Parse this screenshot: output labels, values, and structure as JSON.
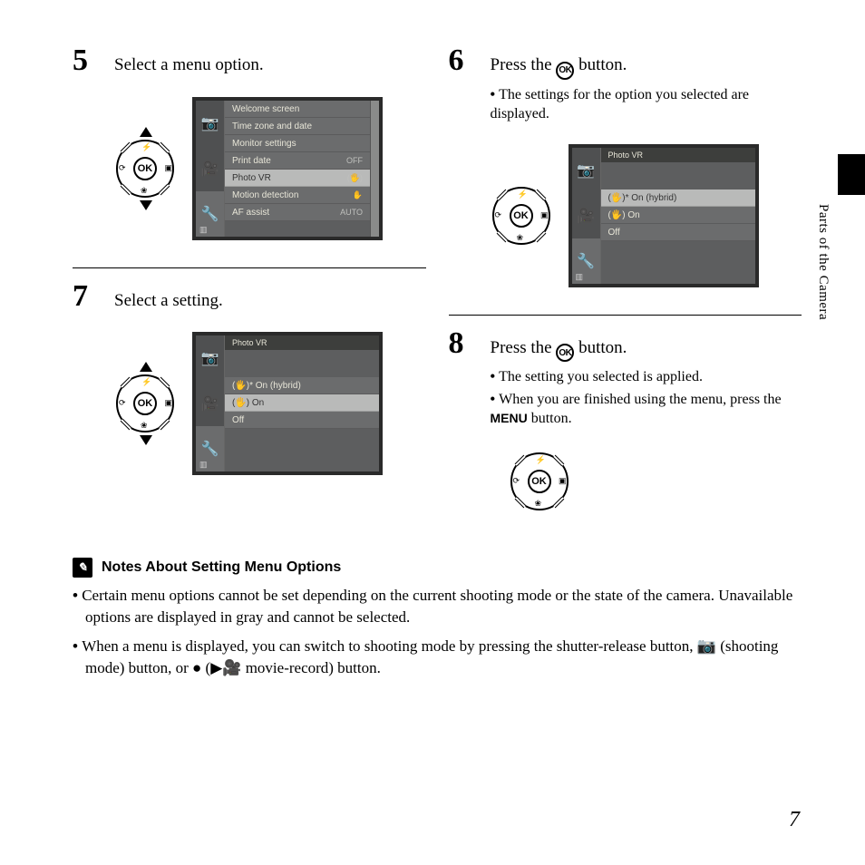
{
  "side": {
    "section": "Parts of the Camera"
  },
  "page_number": "7",
  "steps": {
    "s5": {
      "num": "5",
      "title": "Select a menu option."
    },
    "s6": {
      "num": "6",
      "title_pre": "Press the ",
      "title_post": " button.",
      "bullets": [
        "The settings for the option you selected are displayed."
      ]
    },
    "s7": {
      "num": "7",
      "title": "Select a setting."
    },
    "s8": {
      "num": "8",
      "title_pre": "Press the ",
      "title_post": " button.",
      "bullets": [
        "The setting you selected is applied.",
        "When you are finished using the menu, press the "
      ],
      "menu_word": "MENU",
      "bullet2_post": " button."
    }
  },
  "ok_label": "OK",
  "dial": {
    "top": "⚡",
    "bottom": "❀",
    "left": "⟳",
    "right": "▣"
  },
  "lcd5": {
    "rows": [
      {
        "label": "Welcome screen",
        "val": ""
      },
      {
        "label": "Time zone and date",
        "val": ""
      },
      {
        "label": "Monitor settings",
        "val": ""
      },
      {
        "label": "Print date",
        "val": "OFF"
      },
      {
        "label": "Photo VR",
        "val": "(🖐)",
        "hl": true
      },
      {
        "label": "Motion detection",
        "val": "✋"
      },
      {
        "label": "AF assist",
        "val": "AUTO"
      }
    ]
  },
  "lcd6": {
    "header": "Photo VR",
    "rows": [
      {
        "label": "(🖐)* On (hybrid)",
        "hl": true
      },
      {
        "label": "(🖐)  On"
      },
      {
        "label": "       Off"
      }
    ]
  },
  "lcd7": {
    "header": "Photo VR",
    "rows": [
      {
        "label": "(🖐)* On (hybrid)"
      },
      {
        "label": "(🖐)  On",
        "hl": true
      },
      {
        "label": "       Off"
      }
    ]
  },
  "notes": {
    "heading": "Notes About Setting Menu Options",
    "items": [
      "Certain menu options cannot be set depending on the current shooting mode or the state of the camera. Unavailable options are displayed in gray and cannot be selected.",
      "When a menu is displayed, you can switch to shooting mode by pressing the shutter-release button, 📷 (shooting mode) button, or ● (▶🎥 movie-record) button."
    ]
  },
  "colors": {
    "lcd_frame": "#2a2a2a",
    "lcd_bg": "#5d5e5f",
    "lcd_side": "#4f5051",
    "lcd_row": "#6b6c6d",
    "lcd_hl": "#b9bab9",
    "text_light": "#e8e6d8"
  }
}
